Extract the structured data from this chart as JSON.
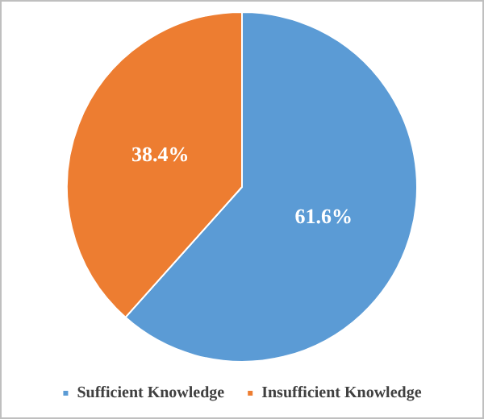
{
  "chart_data": {
    "type": "pie",
    "categories": [
      "Sufficient Knowledge",
      "Insufficient Knowledge"
    ],
    "values": [
      61.6,
      38.4
    ],
    "colors": [
      "#5b9bd5",
      "#ed7d31"
    ],
    "value_labels": [
      "61.6%",
      "38.4%"
    ],
    "legend": "bottom"
  }
}
